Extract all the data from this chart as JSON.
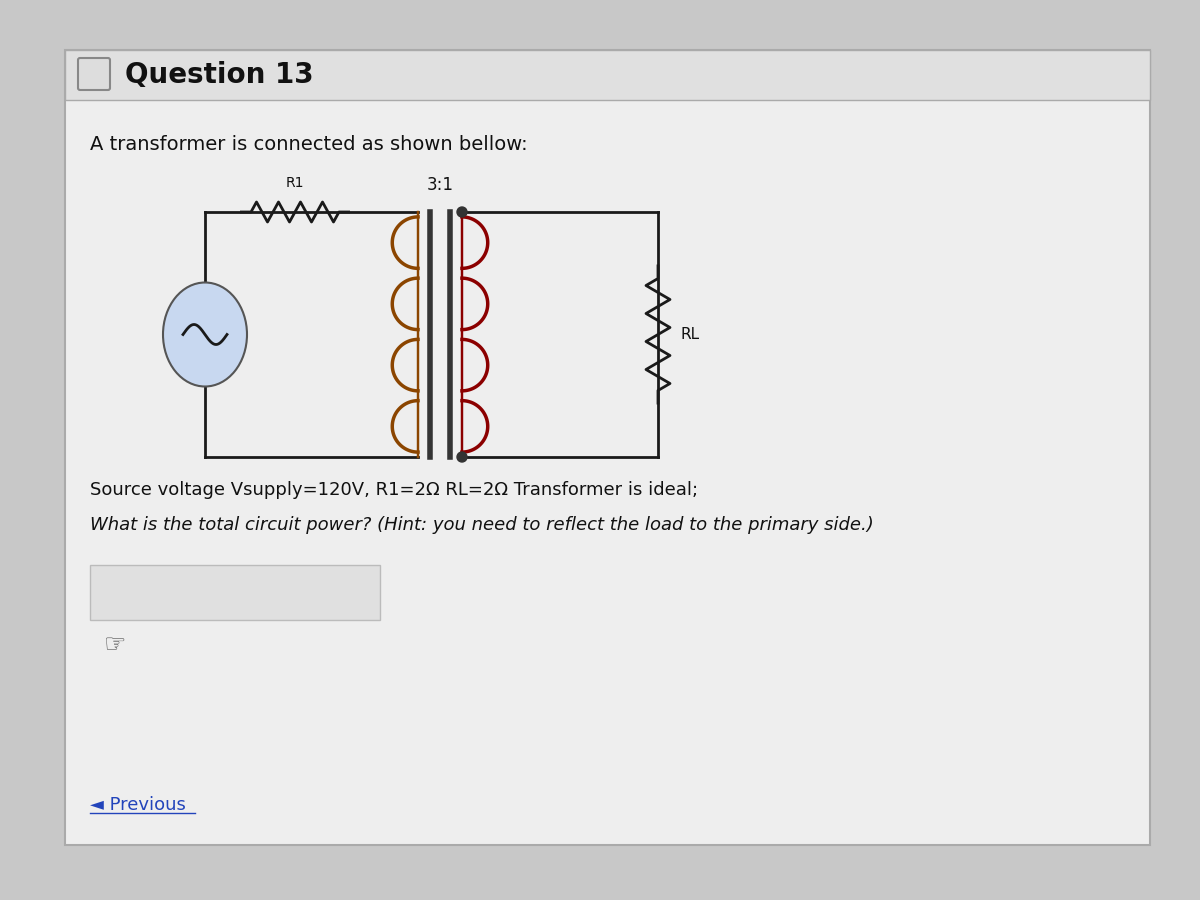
{
  "title": "Question 13",
  "bg_outer": "#c8c8c8",
  "bg_content": "#eeeeee",
  "bg_header": "#e0e0e0",
  "intro_text": "A transformer is connected as shown bellow:",
  "r1_label": "R1",
  "ratio_label": "3:1",
  "rl_label": "RL",
  "line1": "Source voltage Vsupply=120V, R1=2Ω RL=2Ω Transformer is ideal;",
  "line2": "What is the total circuit power? (Hint: you need to reflect the load to the primary side.)",
  "prev_text": "◄ Previous",
  "wire_color": "#1a1a1a",
  "resistor_color": "#1a1a1a",
  "coil_primary_color": "#8B4500",
  "coil_secondary_color": "#8B0000",
  "core_color": "#333333",
  "source_fill": "#c8d8f0",
  "source_edge": "#555555",
  "source_tilde": "#1a1a1a"
}
